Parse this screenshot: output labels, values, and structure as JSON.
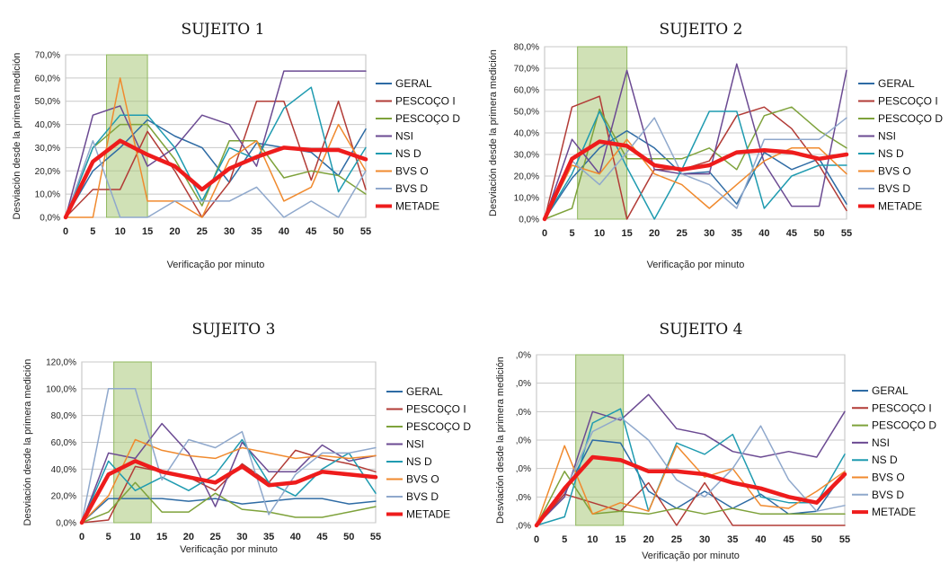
{
  "chart_data": [
    {
      "type": "line",
      "title": "SUJEITO 1",
      "xlabel": "Verificação por minuto",
      "ylabel": "Desviación desde la primera medición",
      "x": [
        0,
        5,
        10,
        15,
        20,
        25,
        30,
        35,
        40,
        45,
        50,
        55
      ],
      "x_ticks": [
        "0",
        "5",
        "10",
        "15",
        "20",
        "25",
        "30",
        "35",
        "40",
        "45",
        "50",
        "55"
      ],
      "y_ticks": [
        "0,0%",
        "10,0%",
        "20,0%",
        "30,0%",
        "40,0%",
        "50,0%",
        "60,0%",
        "70,0%"
      ],
      "ylim": [
        0,
        70
      ],
      "highlight_x": [
        7.5,
        15
      ],
      "legend_position": "right",
      "grid": true,
      "series": [
        {
          "name": "GERAL",
          "color": "#2e6ba4",
          "width": 1.5,
          "values": [
            0,
            20,
            30,
            42,
            35,
            30,
            15,
            32,
            30,
            28,
            18,
            38
          ]
        },
        {
          "name": "PESCOÇO I",
          "color": "#b23b36",
          "width": 1.5,
          "values": [
            0,
            12,
            12,
            37,
            20,
            0,
            15,
            50,
            50,
            16,
            50,
            12
          ]
        },
        {
          "name": "PESCOÇO D",
          "color": "#7ea23b",
          "width": 1.5,
          "values": [
            0,
            30,
            40,
            40,
            25,
            5,
            33,
            33,
            17,
            20,
            18,
            10
          ]
        },
        {
          "name": "NSI",
          "color": "#6b4a92",
          "width": 1.5,
          "values": [
            0,
            44,
            48,
            22,
            30,
            44,
            40,
            22,
            63,
            63,
            63,
            63
          ]
        },
        {
          "name": "NS D",
          "color": "#1f9bb0",
          "width": 1.5,
          "values": [
            0,
            30,
            44,
            44,
            30,
            7,
            30,
            25,
            47,
            56,
            11,
            30
          ]
        },
        {
          "name": "BVS O",
          "color": "#f08a2e",
          "width": 1.5,
          "values": [
            0,
            0,
            60,
            7,
            7,
            0,
            25,
            33,
            7,
            13,
            40,
            20
          ]
        },
        {
          "name": "BVS D",
          "color": "#8fa8cc",
          "width": 1.5,
          "values": [
            0,
            33,
            0,
            0,
            7,
            7,
            7,
            13,
            0,
            7,
            0,
            20
          ]
        },
        {
          "name": "METADE",
          "color": "#ee1c1c",
          "width": 4.5,
          "values": [
            0,
            24,
            33,
            27,
            22,
            12,
            21,
            26,
            30,
            29,
            29,
            25
          ]
        }
      ]
    },
    {
      "type": "line",
      "title": "SUJEITO 2",
      "xlabel": "Verificação por minuto",
      "ylabel": "Desviación desde la primera medición",
      "x": [
        0,
        5,
        10,
        15,
        20,
        25,
        30,
        35,
        40,
        45,
        50,
        55
      ],
      "x_ticks": [
        "0",
        "5",
        "10",
        "15",
        "20",
        "25",
        "30",
        "35",
        "40",
        "45",
        "50",
        "55"
      ],
      "y_ticks": [
        "0,0%",
        "10,0%",
        "20,0%",
        "30,0%",
        "40,0%",
        "50,0%",
        "60,0%",
        "70,0%",
        "80,0%"
      ],
      "ylim": [
        0,
        80
      ],
      "highlight_x": [
        6,
        15
      ],
      "legend_position": "right",
      "grid": true,
      "series": [
        {
          "name": "GERAL",
          "color": "#2e6ba4",
          "width": 1.5,
          "values": [
            0,
            19,
            33,
            41,
            33,
            21,
            22,
            7,
            31,
            23,
            28,
            7
          ]
        },
        {
          "name": "PESCOÇO I",
          "color": "#b23b36",
          "width": 1.5,
          "values": [
            0,
            52,
            57,
            0,
            23,
            23,
            27,
            48,
            52,
            42,
            25,
            4
          ]
        },
        {
          "name": "PESCOÇO D",
          "color": "#7ea23b",
          "width": 1.5,
          "values": [
            0,
            5,
            51,
            28,
            28,
            28,
            33,
            23,
            48,
            52,
            41,
            33
          ]
        },
        {
          "name": "NSI",
          "color": "#6b4a92",
          "width": 1.5,
          "values": [
            0,
            37,
            21,
            69,
            23,
            21,
            21,
            72,
            26,
            6,
            6,
            69
          ]
        },
        {
          "name": "NS D",
          "color": "#1f9bb0",
          "width": 1.5,
          "values": [
            0,
            21,
            50,
            24,
            0,
            23,
            50,
            50,
            5,
            20,
            25,
            25
          ]
        },
        {
          "name": "BVS O",
          "color": "#f08a2e",
          "width": 1.5,
          "values": [
            0,
            25,
            21,
            37,
            21,
            16,
            5,
            16,
            27,
            33,
            33,
            21
          ]
        },
        {
          "name": "BVS D",
          "color": "#8fa8cc",
          "width": 1.5,
          "values": [
            0,
            27,
            16,
            31,
            47,
            21,
            16,
            5,
            37,
            37,
            37,
            47
          ]
        },
        {
          "name": "METADE",
          "color": "#ee1c1c",
          "width": 4.5,
          "values": [
            0,
            28,
            36,
            34,
            25,
            23,
            25,
            31,
            32,
            31,
            28,
            30
          ]
        }
      ]
    },
    {
      "type": "line",
      "title": "SUJEITO 3",
      "xlabel": "Verificação por minuto",
      "ylabel": "Desviación desde la primera medición",
      "x": [
        0,
        5,
        10,
        15,
        20,
        25,
        30,
        35,
        40,
        45,
        50,
        55
      ],
      "x_ticks": [
        "0",
        "5",
        "10",
        "15",
        "20",
        "25",
        "30",
        "35",
        "40",
        "45",
        "50",
        "55"
      ],
      "y_ticks": [
        "0,0%",
        "20,0%",
        "40,0%",
        "60,0%",
        "80,0%",
        "100,0%",
        "120,0%"
      ],
      "ylim": [
        0,
        120
      ],
      "highlight_x": [
        6,
        13
      ],
      "legend_position": "right",
      "grid": true,
      "series": [
        {
          "name": "GERAL",
          "color": "#2e6ba4",
          "width": 1.5,
          "values": [
            0,
            18,
            18,
            18,
            16,
            18,
            14,
            16,
            18,
            18,
            14,
            16
          ]
        },
        {
          "name": "PESCOÇO I",
          "color": "#b23b36",
          "width": 1.5,
          "values": [
            0,
            2,
            42,
            38,
            34,
            24,
            44,
            30,
            54,
            48,
            44,
            38
          ]
        },
        {
          "name": "PESCOÇO D",
          "color": "#7ea23b",
          "width": 1.5,
          "values": [
            0,
            8,
            30,
            8,
            8,
            22,
            10,
            8,
            4,
            4,
            8,
            12
          ]
        },
        {
          "name": "NSI",
          "color": "#6b4a92",
          "width": 1.5,
          "values": [
            0,
            52,
            48,
            74,
            52,
            12,
            60,
            38,
            38,
            58,
            46,
            50
          ]
        },
        {
          "name": "NS D",
          "color": "#1f9bb0",
          "width": 1.5,
          "values": [
            0,
            46,
            24,
            34,
            24,
            36,
            62,
            30,
            20,
            40,
            52,
            22
          ]
        },
        {
          "name": "BVS O",
          "color": "#f08a2e",
          "width": 1.5,
          "values": [
            0,
            20,
            62,
            54,
            50,
            48,
            56,
            52,
            48,
            50,
            48,
            50
          ]
        },
        {
          "name": "BVS D",
          "color": "#8fa8cc",
          "width": 1.5,
          "values": [
            0,
            100,
            100,
            32,
            62,
            56,
            68,
            6,
            36,
            52,
            52,
            56
          ]
        },
        {
          "name": "METADE",
          "color": "#ee1c1c",
          "width": 4.5,
          "values": [
            0,
            36,
            46,
            38,
            34,
            30,
            42,
            28,
            30,
            38,
            36,
            34
          ]
        }
      ]
    },
    {
      "type": "line",
      "title": "SUJEITO 4",
      "xlabel": "Verificação por minuto",
      "ylabel": "Desviación desde la primera medición",
      "x": [
        0,
        5,
        10,
        15,
        20,
        25,
        30,
        35,
        40,
        45,
        50,
        55
      ],
      "x_ticks": [
        "0",
        "5",
        "10",
        "15",
        "20",
        "25",
        "30",
        "35",
        "40",
        "45",
        "50",
        "55"
      ],
      "y_ticks": [
        ",0%",
        ",0%",
        ",0%",
        ",0%",
        ",0%",
        ",0%",
        ",0%"
      ],
      "ylim": [
        0,
        120
      ],
      "highlight_x": [
        7,
        15.5
      ],
      "legend_position": "right",
      "grid": true,
      "series": [
        {
          "name": "GERAL",
          "color": "#2e6ba4",
          "width": 1.5,
          "values": [
            0,
            22,
            60,
            58,
            24,
            12,
            24,
            12,
            22,
            8,
            10,
            38
          ]
        },
        {
          "name": "PESCOÇO I",
          "color": "#b23b36",
          "width": 1.5,
          "values": [
            0,
            22,
            16,
            10,
            30,
            0,
            30,
            0,
            0,
            0,
            0,
            0
          ]
        },
        {
          "name": "PESCOÇO D",
          "color": "#7ea23b",
          "width": 1.5,
          "values": [
            0,
            38,
            8,
            10,
            8,
            12,
            8,
            12,
            8,
            8,
            8,
            8
          ]
        },
        {
          "name": "NSI",
          "color": "#6b4a92",
          "width": 1.5,
          "values": [
            0,
            20,
            80,
            74,
            92,
            68,
            64,
            52,
            48,
            52,
            48,
            80
          ]
        },
        {
          "name": "NS D",
          "color": "#1f9bb0",
          "width": 1.5,
          "values": [
            0,
            6,
            72,
            82,
            10,
            58,
            50,
            64,
            20,
            16,
            16,
            50
          ]
        },
        {
          "name": "BVS O",
          "color": "#f08a2e",
          "width": 1.5,
          "values": [
            0,
            56,
            8,
            16,
            10,
            56,
            34,
            40,
            14,
            12,
            24,
            38
          ]
        },
        {
          "name": "BVS D",
          "color": "#8fa8cc",
          "width": 1.5,
          "values": [
            0,
            24,
            66,
            76,
            60,
            32,
            20,
            40,
            70,
            32,
            10,
            14
          ]
        },
        {
          "name": "METADE",
          "color": "#ee1c1c",
          "width": 4.5,
          "values": [
            0,
            26,
            48,
            46,
            38,
            38,
            36,
            30,
            26,
            20,
            16,
            36
          ]
        }
      ]
    }
  ]
}
